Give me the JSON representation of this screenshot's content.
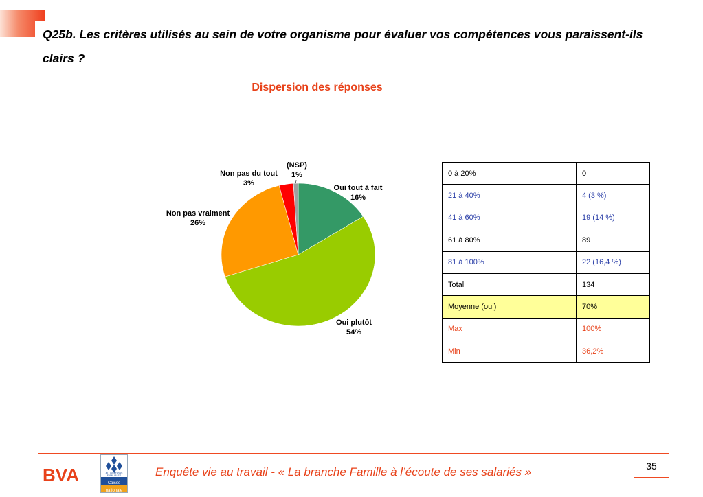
{
  "slide": {
    "title": "Q25b. Les critères utilisés au sein de votre organisme pour évaluer vos compétences vous paraissent-ils clairs ?",
    "subtitle": "Dispersion des réponses",
    "page_number": "35",
    "footer_text": "Enquête vie au travail - « La branche Famille à l’écoute de ses salariés »"
  },
  "chart_data": {
    "type": "pie",
    "title": "",
    "slices": [
      {
        "name": "Oui tout à fait",
        "value": 16,
        "label": "16%",
        "color": "#349966"
      },
      {
        "name": "Oui plutôt",
        "value": 54,
        "label": "54%",
        "color": "#99cc00"
      },
      {
        "name": "Non pas vraiment",
        "value": 26,
        "label": "26%",
        "color": "#ff9900"
      },
      {
        "name": "Non pas du tout",
        "value": 3,
        "label": "3%",
        "color": "#ff0000"
      },
      {
        "name": "(NSP)",
        "value": 1,
        "label": "1%",
        "color": "#a0a0a0"
      }
    ]
  },
  "stats_table": {
    "rows": [
      {
        "label": "0 à 20%",
        "value": "0",
        "color": "#000000",
        "background": "#ffffff"
      },
      {
        "label": "21 à 40%",
        "value": "4 (3 %)",
        "color": "#2b3fa8",
        "background": "#ffffff"
      },
      {
        "label": "41 à 60%",
        "value": "19 (14 %)",
        "color": "#2b3fa8",
        "background": "#ffffff"
      },
      {
        "label": "61 à 80%",
        "value": "89",
        "color": "#000000",
        "background": "#ffffff"
      },
      {
        "label": "81 à 100%",
        "value": "22 (16,4 %)",
        "color": "#2b3fa8",
        "background": "#ffffff"
      },
      {
        "label": "Total",
        "value": "134",
        "color": "#000000",
        "background": "#ffffff"
      },
      {
        "label": "Moyenne (oui)",
        "value": "70%",
        "color": "#000000",
        "background": "#ffff99"
      },
      {
        "label": "Max",
        "value": "100%",
        "color": "#e8421a",
        "background": "#ffffff"
      },
      {
        "label": "Min",
        "value": "36,2%",
        "color": "#e8421a",
        "background": "#ffffff"
      }
    ]
  },
  "logos": {
    "bva": "BVA",
    "caf_line1": "ALLOCATIONS",
    "caf_line2": "FAMILIALES",
    "caf_line3": "Caisse",
    "caf_line4": "nationale"
  },
  "colors": {
    "accent": "#e8421a",
    "rule": "#ef4a22",
    "table_blue": "#2b3fa8",
    "highlight": "#ffff99"
  }
}
